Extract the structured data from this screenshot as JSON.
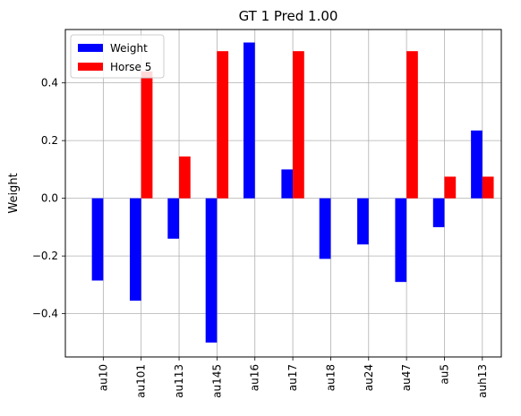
{
  "chart_data": {
    "type": "bar",
    "title": "GT 1 Pred 1.00",
    "xlabel": "",
    "ylabel": "Weight",
    "categories": [
      "au10",
      "au101",
      "au113",
      "au145",
      "au16",
      "au17",
      "au18",
      "au24",
      "au47",
      "au5",
      "auh13"
    ],
    "series": [
      {
        "name": "Weight",
        "color": "#0000ff",
        "values": [
          -0.285,
          -0.355,
          -0.14,
          -0.5,
          0.54,
          0.1,
          -0.21,
          -0.16,
          -0.29,
          -0.1,
          0.235
        ]
      },
      {
        "name": "Horse 5",
        "color": "#ff0000",
        "values": [
          0,
          0.44,
          0.145,
          0.51,
          0,
          0.51,
          0,
          0,
          0.51,
          0.075,
          0.075
        ]
      }
    ],
    "ylim": [
      -0.55,
      0.585
    ],
    "yticks": [
      -0.4,
      -0.2,
      0.0,
      0.2,
      0.4
    ],
    "ytick_labels": [
      "−0.4",
      "−0.2",
      "0.0",
      "0.2",
      "0.4"
    ],
    "grid": true,
    "legend_position": "upper-left"
  }
}
